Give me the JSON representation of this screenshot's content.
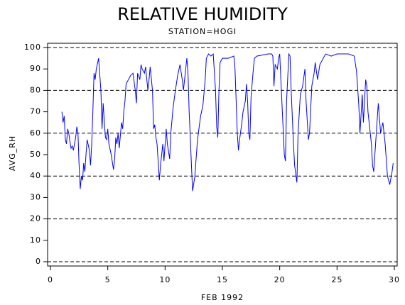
{
  "chart_data": {
    "type": "line",
    "title": "RELATIVE HUMIDITY",
    "subtitle": "STATION=HOGI",
    "x_label": "FEB 1992",
    "y_label": "AVG_RH",
    "x": [
      1.0,
      1.1,
      1.2,
      1.3,
      1.4,
      1.5,
      1.6,
      1.7,
      1.8,
      1.9,
      2.0,
      2.1,
      2.2,
      2.3,
      2.4,
      2.5,
      2.6,
      2.7,
      2.8,
      2.9,
      3.0,
      3.1,
      3.2,
      3.4,
      3.5,
      3.6,
      3.7,
      3.8,
      3.9,
      4.0,
      4.2,
      4.4,
      4.5,
      4.6,
      4.7,
      4.8,
      4.9,
      5.0,
      5.1,
      5.3,
      5.5,
      5.6,
      5.7,
      5.8,
      5.9,
      6.0,
      6.2,
      6.3,
      6.4,
      6.5,
      6.6,
      6.8,
      7.0,
      7.2,
      7.4,
      7.5,
      7.6,
      7.8,
      7.9,
      8.0,
      8.2,
      8.3,
      8.5,
      8.6,
      8.7,
      8.9,
      9.0,
      9.1,
      9.2,
      9.3,
      9.5,
      9.6,
      9.7,
      9.8,
      9.9,
      10.1,
      10.2,
      10.4,
      10.5,
      10.7,
      10.9,
      11.1,
      11.3,
      11.5,
      11.6,
      11.9,
      12.0,
      12.1,
      12.2,
      12.3,
      12.4,
      12.6,
      12.8,
      12.9,
      13.1,
      13.3,
      13.5,
      13.6,
      13.8,
      14.0,
      14.2,
      14.4,
      14.5,
      14.6,
      14.7,
      14.8,
      15.0,
      15.5,
      16.0,
      16.1,
      16.2,
      16.3,
      16.4,
      16.5,
      16.7,
      16.8,
      17.0,
      17.1,
      17.2,
      17.3,
      17.4,
      17.5,
      17.7,
      17.8,
      18.0,
      19.0,
      19.3,
      19.4,
      19.5,
      19.6,
      19.8,
      19.9,
      20.0,
      20.1,
      20.3,
      20.4,
      20.5,
      20.6,
      20.8,
      20.9,
      21.0,
      21.2,
      21.3,
      21.5,
      21.6,
      21.8,
      22.0,
      22.2,
      22.3,
      22.5,
      22.6,
      22.8,
      23.0,
      23.1,
      23.3,
      23.5,
      24.0,
      24.5,
      25.0,
      26.0,
      26.5,
      26.7,
      26.9,
      27.0,
      27.2,
      27.3,
      27.5,
      27.6,
      27.7,
      27.9,
      28.0,
      28.1,
      28.2,
      28.4,
      28.6,
      28.8,
      29.0,
      29.2,
      29.4,
      29.6,
      29.8,
      29.9
    ],
    "series": [
      {
        "name": "AVG_RH",
        "color": "#0000ff",
        "values": [
          70,
          65,
          68,
          57,
          55,
          62,
          60,
          56,
          53,
          54,
          52,
          55,
          58,
          63,
          60,
          45,
          34,
          40,
          38,
          46,
          42,
          50,
          57,
          52,
          45,
          55,
          70,
          88,
          85,
          90,
          95,
          80,
          62,
          74,
          65,
          58,
          57,
          62,
          55,
          50,
          43,
          48,
          58,
          55,
          60,
          53,
          65,
          62,
          70,
          75,
          83,
          85,
          87,
          88,
          80,
          74,
          88,
          85,
          92,
          90,
          88,
          91,
          80,
          85,
          91,
          80,
          62,
          64,
          58,
          55,
          38,
          45,
          50,
          55,
          47,
          62,
          55,
          48,
          60,
          72,
          80,
          87,
          92,
          85,
          80,
          95,
          88,
          70,
          58,
          45,
          33,
          40,
          55,
          60,
          68,
          73,
          85,
          95,
          97,
          96,
          97,
          80,
          63,
          58,
          80,
          93,
          95,
          95,
          96,
          90,
          75,
          60,
          52,
          57,
          65,
          70,
          75,
          83,
          75,
          60,
          57,
          77,
          90,
          95,
          96,
          97,
          97,
          96,
          82,
          92,
          90,
          95,
          97,
          85,
          62,
          50,
          47,
          75,
          97,
          96,
          80,
          55,
          45,
          37,
          60,
          78,
          82,
          90,
          75,
          57,
          60,
          82,
          88,
          93,
          85,
          92,
          97,
          96,
          97,
          97,
          96,
          89,
          73,
          60,
          78,
          65,
          85,
          82,
          70,
          60,
          55,
          45,
          42,
          58,
          74,
          60,
          65,
          55,
          40,
          36,
          42,
          46
        ]
      }
    ],
    "xlim": [
      0,
      30
    ],
    "xticks": [
      0,
      5,
      10,
      15,
      20,
      25,
      30
    ],
    "ylim": [
      0,
      100
    ],
    "yticks": [
      0,
      10,
      20,
      30,
      40,
      50,
      60,
      70,
      80,
      90,
      100
    ],
    "grid_lines": [
      0,
      20,
      40,
      60,
      80,
      100
    ]
  }
}
